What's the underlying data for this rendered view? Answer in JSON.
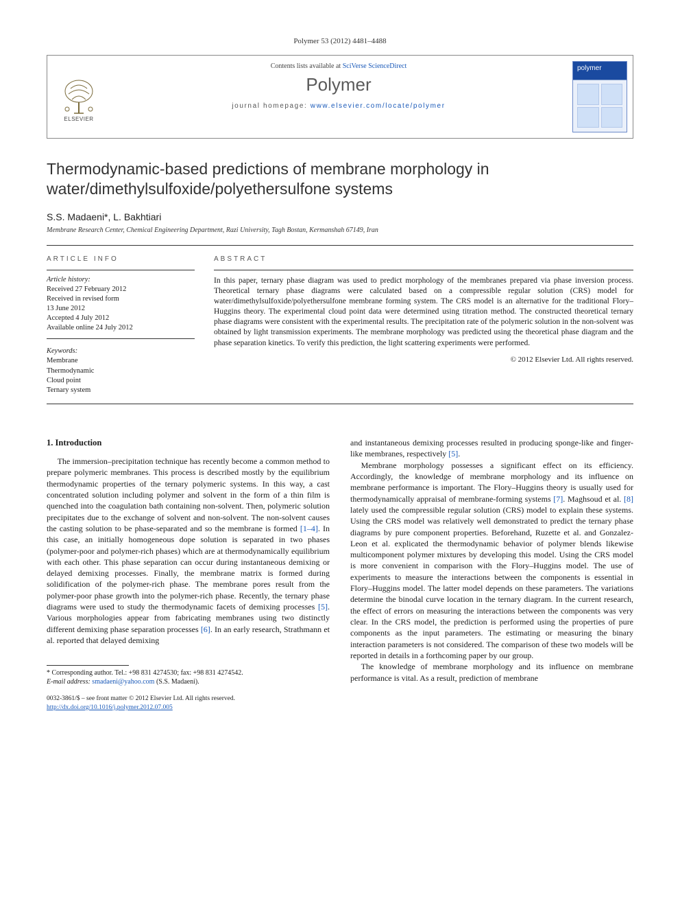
{
  "citation": "Polymer 53 (2012) 4481–4488",
  "header": {
    "contents_prefix": "Contents lists available at ",
    "contents_link": "SciVerse ScienceDirect",
    "journal": "Polymer",
    "homepage_prefix": "journal homepage: ",
    "homepage_url": "www.elsevier.com/locate/polymer",
    "publisher": "ELSEVIER",
    "cover_label": "polymer"
  },
  "title": "Thermodynamic-based predictions of membrane morphology in water/dimethylsulfoxide/polyethersulfone systems",
  "authors": "S.S. Madaeni*, L. Bakhtiari",
  "affiliation": "Membrane Research Center, Chemical Engineering Department, Razi University, Tagh Bostan, Kermanshah 67149, Iran",
  "article_info": {
    "heading": "ARTICLE INFO",
    "history_heading": "Article history:",
    "history": [
      "Received 27 February 2012",
      "Received in revised form",
      "13 June 2012",
      "Accepted 4 July 2012",
      "Available online 24 July 2012"
    ],
    "keywords_heading": "Keywords:",
    "keywords": [
      "Membrane",
      "Thermodynamic",
      "Cloud point",
      "Ternary system"
    ]
  },
  "abstract": {
    "heading": "ABSTRACT",
    "body": "In this paper, ternary phase diagram was used to predict morphology of the membranes prepared via phase inversion process. Theoretical ternary phase diagrams were calculated based on a compressible regular solution (CRS) model for water/dimethylsulfoxide/polyethersulfone membrane forming system. The CRS model is an alternative for the traditional Flory–Huggins theory. The experimental cloud point data were determined using titration method. The constructed theoretical ternary phase diagrams were consistent with the experimental results. The precipitation rate of the polymeric solution in the non-solvent was obtained by light transmission experiments. The membrane morphology was predicted using the theoretical phase diagram and the phase separation kinetics. To verify this prediction, the light scattering experiments were performed.",
    "copyright": "© 2012 Elsevier Ltd. All rights reserved."
  },
  "section1": {
    "heading": "1. Introduction",
    "p1": "The immersion–precipitation technique has recently become a common method to prepare polymeric membranes. This process is described mostly by the equilibrium thermodynamic properties of the ternary polymeric systems. In this way, a cast concentrated solution including polymer and solvent in the form of a thin film is quenched into the coagulation bath containing non-solvent. Then, polymeric solution precipitates due to the exchange of solvent and non-solvent. The non-solvent causes the casting solution to be phase-separated and so the membrane is formed [1–4]. In this case, an initially homogeneous dope solution is separated in two phases (polymer-poor and polymer-rich phases) which are at thermodynamically equilibrium with each other. This phase separation can occur during instantaneous demixing or delayed demixing processes. Finally, the membrane matrix is formed during solidification of the polymer-rich phase. The membrane pores result from the polymer-poor phase growth into the polymer-rich phase. Recently, the ternary phase diagrams were used to study the thermodynamic facets of demixing processes [5]. Various morphologies appear from fabricating membranes using two distinctly different demixing phase separation processes [6]. In an early research, Strathmann et al. reported that delayed demixing",
    "p2a": "and instantaneous demixing processes resulted in producing sponge-like and finger-like membranes, respectively [5].",
    "p2b": "Membrane morphology possesses a significant effect on its efficiency. Accordingly, the knowledge of membrane morphology and its influence on membrane performance is important. The Flory–Huggins theory is usually used for thermodynamically appraisal of membrane-forming systems [7]. Maghsoud et al. [8] lately used the compressible regular solution (CRS) model to explain these systems. Using the CRS model was relatively well demonstrated to predict the ternary phase diagrams by pure component properties. Beforehand, Ruzette et al. and Gonzalez-Leon et al. explicated the thermodynamic behavior of polymer blends likewise multicomponent polymer mixtures by developing this model. Using the CRS model is more convenient in comparison with the Flory–Huggins model. The use of experiments to measure the interactions between the components is essential in Flory–Huggins model. The latter model depends on these parameters. The variations determine the binodal curve location in the ternary diagram. In the current research, the effect of errors on measuring the interactions between the components was very clear. In the CRS model, the prediction is performed using the properties of pure components as the input parameters. The estimating or measuring the binary interaction parameters is not considered. The comparison of these two models will be reported in details in a forthcoming paper by our group.",
    "p2c": "The knowledge of membrane morphology and its influence on membrane performance is vital. As a result, prediction of membrane"
  },
  "footnote": {
    "corr": "* Corresponding author. Tel.: +98 831 4274530; fax: +98 831 4274542.",
    "email_label": "E-mail address: ",
    "email": "smadaeni@yahoo.com",
    "email_suffix": " (S.S. Madaeni)."
  },
  "copyblock": {
    "line1": "0032-3861/$ – see front matter © 2012 Elsevier Ltd. All rights reserved.",
    "doi": "http://dx.doi.org/10.1016/j.polymer.2012.07.005"
  },
  "colors": {
    "link": "#1858b8",
    "rule": "#333333",
    "header_border": "#888888",
    "journal_grey": "#5a5a5a",
    "cover_blue": "#1a4aa0"
  }
}
